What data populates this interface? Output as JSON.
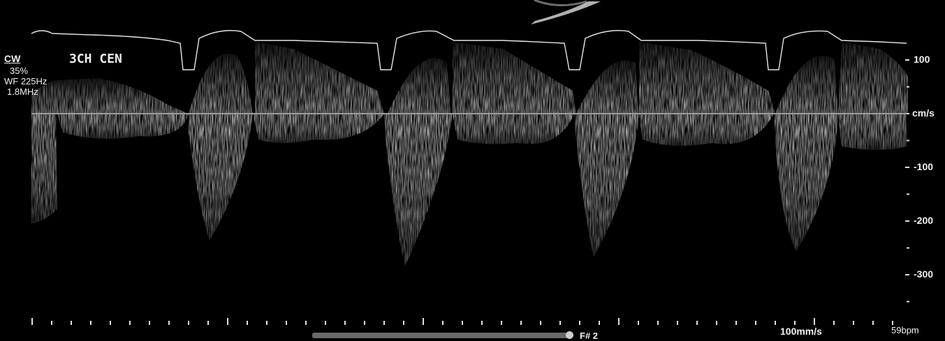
{
  "mode": {
    "label": "CW",
    "gain": "35%",
    "wall_filter": "WF 225Hz",
    "frequency": "1.8MHz"
  },
  "view_label": "3CH CEN",
  "velocity_scale": {
    "unit": "cm/s",
    "ticks": [
      {
        "value": 100,
        "label": "100"
      },
      {
        "value": -100,
        "label": "-100"
      },
      {
        "value": -200,
        "label": "-200"
      },
      {
        "value": -300,
        "label": "-300"
      }
    ]
  },
  "sweep_speed": "100mm/s",
  "heart_rate": "59bpm",
  "frame": "F# 2",
  "playback_progress": 1.0,
  "colors": {
    "background": "#000000",
    "spectrum": "#d9d9d9",
    "baseline": "#9a9a9a",
    "text": "#f0f0f0"
  }
}
